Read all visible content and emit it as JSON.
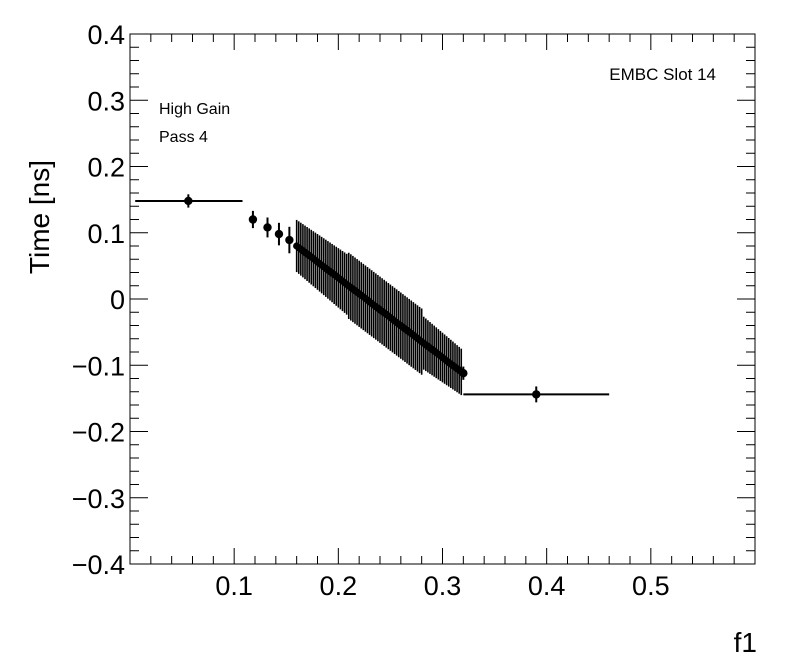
{
  "chart_data": {
    "type": "scatter",
    "title": "",
    "xlabel": "f1",
    "ylabel": "Time [ns]",
    "xlim": [
      0.0,
      0.6
    ],
    "ylim": [
      -0.4,
      0.4
    ],
    "x_ticks": [
      0.1,
      0.2,
      0.3,
      0.4,
      0.5
    ],
    "x_tick_labels": [
      "0.1",
      "0.2",
      "0.3",
      "0.4",
      "0.5"
    ],
    "y_ticks": [
      -0.4,
      -0.3,
      -0.2,
      -0.1,
      0,
      0.1,
      0.2,
      0.3,
      0.4
    ],
    "y_tick_labels": [
      "−0.4",
      "−0.3",
      "−0.2",
      "−0.1",
      "0",
      "0.1",
      "0.2",
      "0.3",
      "0.4"
    ],
    "grid": false,
    "annotations": {
      "slot": "EMBC Slot 14",
      "gain": "High Gain",
      "pass": "Pass 4"
    },
    "series": [
      {
        "points": [
          {
            "x": 0.056,
            "y": 0.148,
            "xerr": [
              0.005,
              0.108
            ],
            "yerr": 0.01
          },
          {
            "x": 0.118,
            "y": 0.12,
            "xerr": [
              0.116,
              0.12
            ],
            "yerr": 0.013
          },
          {
            "x": 0.132,
            "y": 0.108,
            "xerr": [
              0.13,
              0.134
            ],
            "yerr": 0.015
          },
          {
            "x": 0.143,
            "y": 0.098,
            "xerr": [
              0.141,
              0.145
            ],
            "yerr": 0.017
          },
          {
            "x": 0.153,
            "y": 0.089,
            "xerr": [
              0.151,
              0.155
            ],
            "yerr": 0.02
          },
          {
            "x": 0.32,
            "y": -0.112,
            "xerr": [
              0.318,
              0.322
            ],
            "yerr": 0.01
          },
          {
            "x": 0.39,
            "y": -0.144,
            "xerr": [
              0.32,
              0.46
            ],
            "yerr": 0.012
          }
        ],
        "dense_band": {
          "x_start": 0.16,
          "x_end": 0.318,
          "step": 0.002,
          "y_start": 0.08,
          "y_end": -0.11,
          "yerr_edge": 0.048,
          "yerr_core": 0.05,
          "core_range": [
            0.21,
            0.28
          ]
        }
      }
    ]
  }
}
